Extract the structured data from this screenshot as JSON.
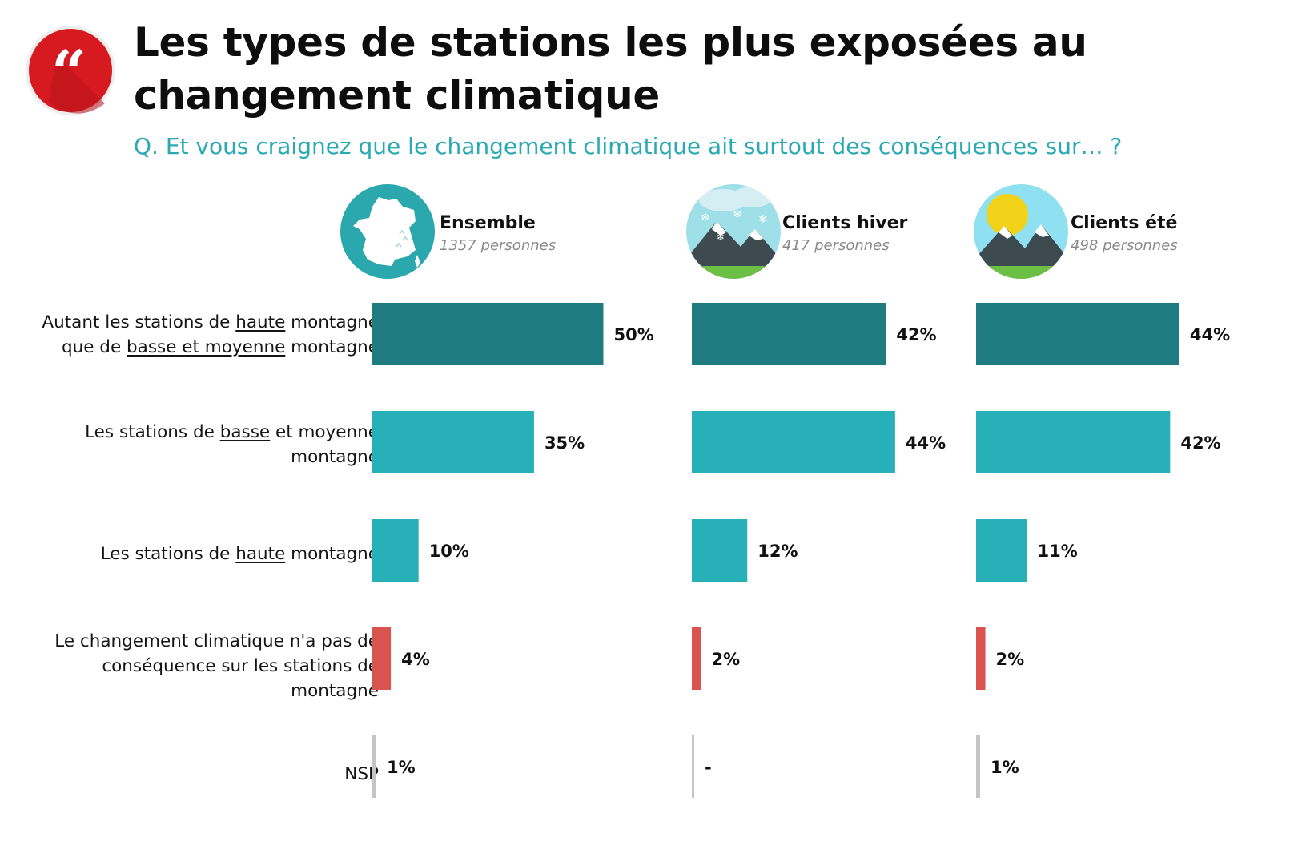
{
  "title": "Les types de stations les plus exposées au changement climatique",
  "question": "Q. Et vous craignez que le changement climatique ait surtout des conséquences sur… ?",
  "badge_icon": "quote-icon",
  "colors": {
    "title": "#0d0d0d",
    "question": "#29a9b2",
    "bar_dark_teal": "#1e7b7f",
    "bar_teal": "#27b0b8",
    "bar_red": "#d9534f",
    "bar_gray": "#c4c4c4",
    "badge": "#d71920"
  },
  "groups": [
    {
      "name": "Ensemble",
      "count": "1357 personnes",
      "icon": "france-map-icon"
    },
    {
      "name": "Clients hiver",
      "count": "417 personnes",
      "icon": "winter-mountain-icon"
    },
    {
      "name": "Clients été",
      "count": "498 personnes",
      "icon": "summer-mountain-icon"
    }
  ],
  "row_labels": [
    "Autant les stations de haute montagne que de basse et moyenne montagne",
    "Les stations de basse et moyenne montagne",
    "Les stations de haute montagne",
    "Le changement climatique n'a pas de conséquence sur les stations de montagne",
    "NSP"
  ],
  "chart_data": {
    "type": "bar",
    "orientation": "horizontal",
    "categories": [
      "Autant les stations de haute montagne que de basse et moyenne montagne",
      "Les stations de basse et moyenne montagne",
      "Les stations de haute montagne",
      "Le changement climatique n'a pas de conséquence sur les stations de montagne",
      "NSP"
    ],
    "series": [
      {
        "name": "Ensemble",
        "values": [
          50,
          35,
          10,
          4,
          1
        ],
        "labels": [
          "50%",
          "35%",
          "10%",
          "4%",
          "1%"
        ]
      },
      {
        "name": "Clients hiver",
        "values": [
          42,
          44,
          12,
          2,
          0
        ],
        "labels": [
          "42%",
          "44%",
          "12%",
          "2%",
          "-"
        ]
      },
      {
        "name": "Clients été",
        "values": [
          44,
          42,
          11,
          2,
          1
        ],
        "labels": [
          "44%",
          "42%",
          "11%",
          "2%",
          "1%"
        ]
      }
    ],
    "unit": "%",
    "bar_colors": [
      "#1e7b7f",
      "#27b0b8",
      "#27b0b8",
      "#d9534f",
      "#c4c4c4"
    ],
    "axis_visible": false,
    "grid": false
  }
}
